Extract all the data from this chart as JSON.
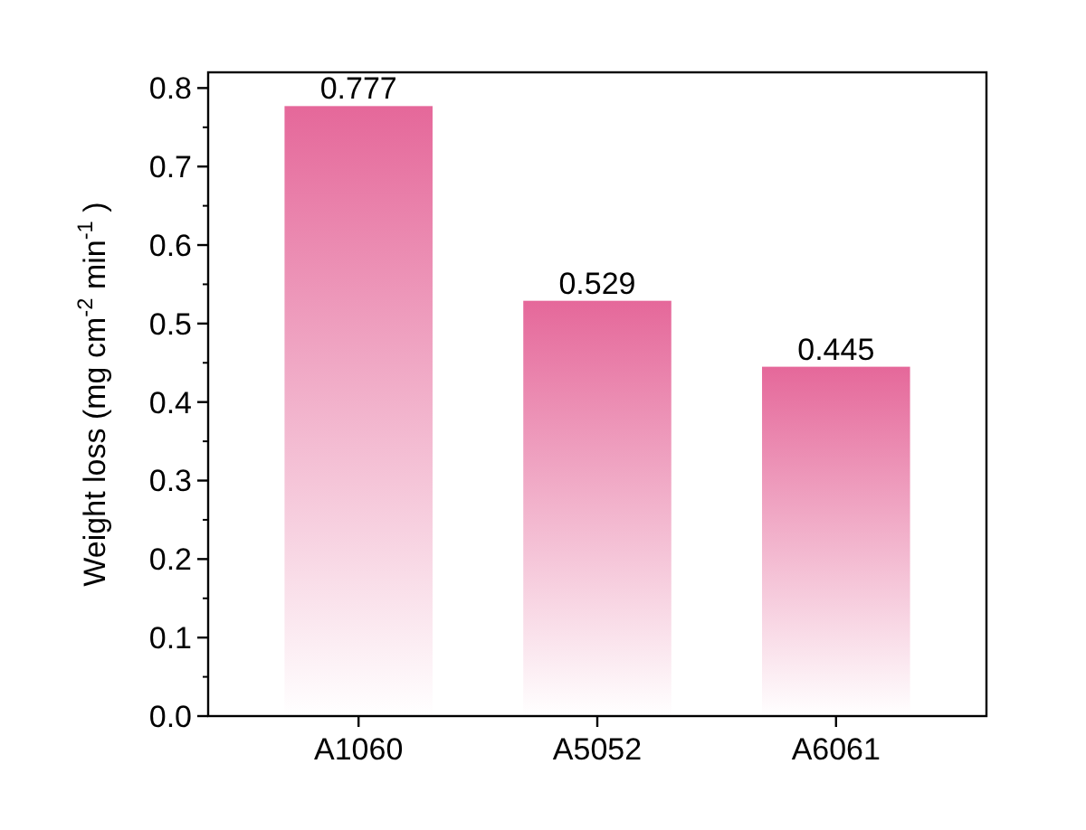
{
  "chart_data": {
    "type": "bar",
    "ylabel": "Weight loss (mg cm$^{-2}$ min$^{-1}$ )",
    "categories": [
      "A1060",
      "A5052",
      "A6061"
    ],
    "values": [
      0.777,
      0.529,
      0.445
    ],
    "color": "#e5689a",
    "ylim": [
      0,
      0.82
    ],
    "yticks": [
      {
        "value": 0,
        "label": "0.0"
      },
      {
        "value": 0.1,
        "label": "0.1"
      },
      {
        "value": 0.2,
        "label": "0.2"
      },
      {
        "value": 0.3,
        "label": "0.3"
      },
      {
        "value": 0.4,
        "label": "0.4"
      },
      {
        "value": 0.5,
        "label": "0.5"
      },
      {
        "value": 0.6,
        "label": "0.6"
      },
      {
        "value": 0.7,
        "label": "0.7"
      },
      {
        "value": 0.8,
        "label": "0.8"
      }
    ],
    "data_labels": true
  }
}
